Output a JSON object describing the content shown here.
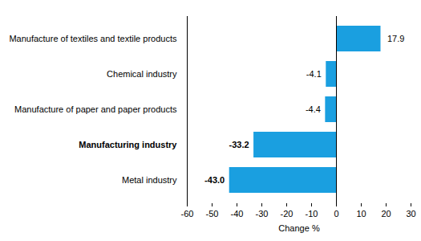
{
  "chart_data": {
    "type": "bar",
    "orientation": "horizontal",
    "categories": [
      "Manufacture of textiles and textile products",
      "Chemical industry",
      "Manufacture of paper and paper products",
      "Manufacturing industry",
      "Metal industry"
    ],
    "values": [
      17.9,
      -4.1,
      -4.4,
      -33.2,
      -43.0
    ],
    "value_labels": [
      "17.9",
      "-4.1",
      "-4.4",
      "-33.2",
      "-43.0"
    ],
    "data_labels": true,
    "color": "#1a9fe0",
    "x_label": "Change %",
    "xlim": [
      -60,
      30
    ],
    "xticks": [
      -60,
      -50,
      -40,
      -30,
      -20,
      -10,
      0,
      10,
      20,
      30
    ],
    "grid": false
  }
}
